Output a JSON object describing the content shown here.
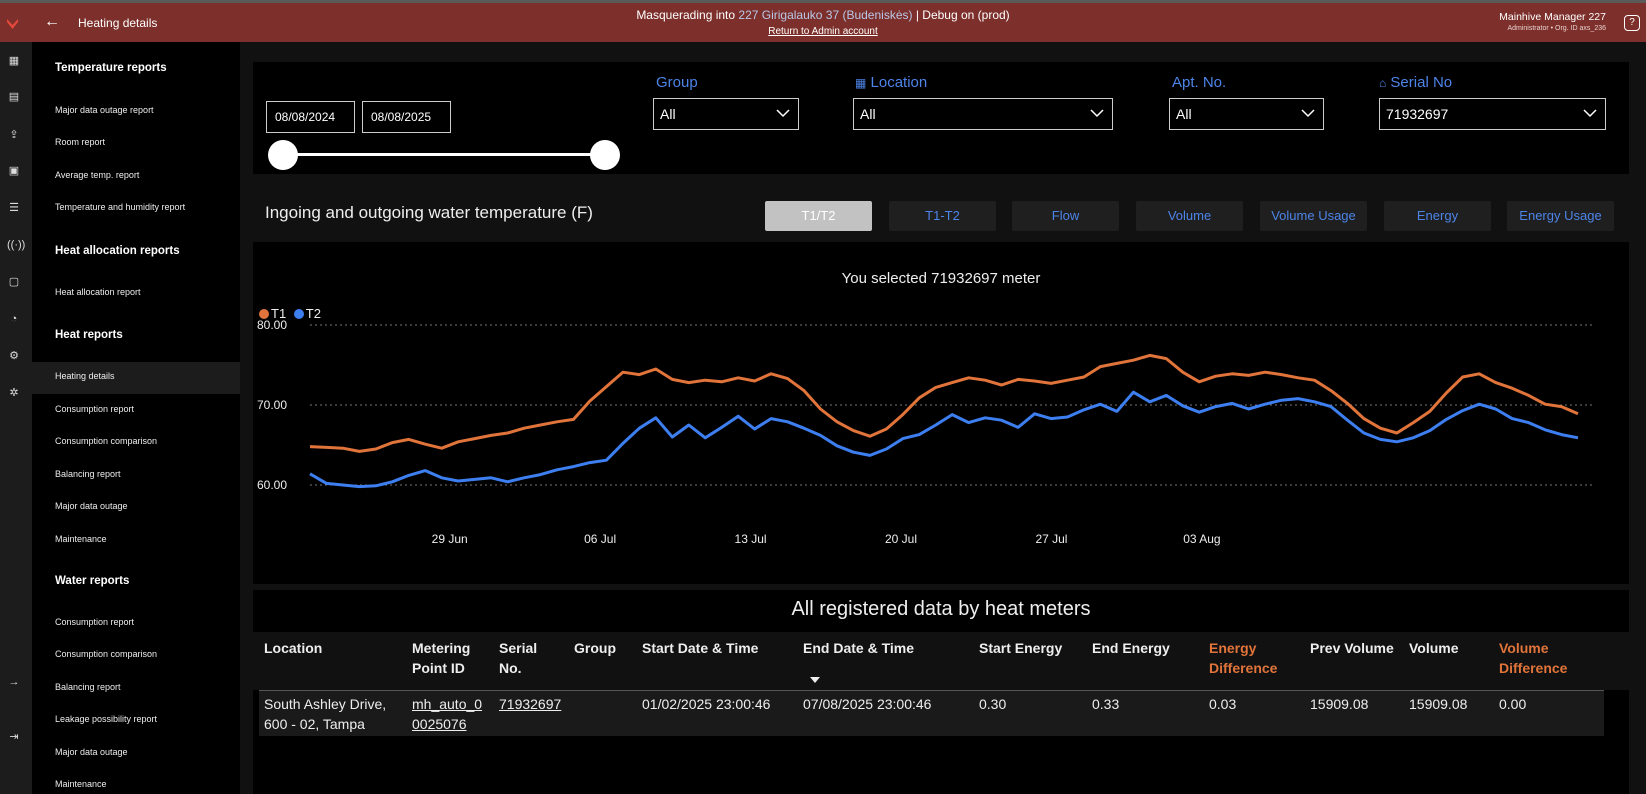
{
  "topbar": {
    "title": "Heating details",
    "masq_prefix": "Masquerading into ",
    "masq_target": "227 Girigalauko 37 (Budeniskės)",
    "masq_suffix": " | Debug on (prod)",
    "return_link": "Return to Admin account",
    "user_name": "Mainhive Manager 227",
    "user_sub": "Administrator • Org. ID axs_236"
  },
  "sidebar": {
    "sections": [
      {
        "title": "Temperature reports",
        "items": [
          "Major data outage report",
          "Room report",
          "Average temp. report",
          "Temperature and humidity report"
        ]
      },
      {
        "title": "Heat allocation reports",
        "items": [
          "Heat allocation report"
        ]
      },
      {
        "title": "Heat reports",
        "items": [
          "Heating details",
          "Consumption report",
          "Consumption comparison",
          "Balancing report",
          "Major data outage",
          "Maintenance"
        ]
      },
      {
        "title": "Water reports",
        "items": [
          "Consumption report",
          "Consumption comparison",
          "Balancing report",
          "Leakage possibility report",
          "Major data outage",
          "Maintenance"
        ]
      }
    ]
  },
  "filters": {
    "date_from": "08/08/2024",
    "date_to": "08/08/2025",
    "group_label": "Group",
    "group_value": "All",
    "location_label": "Location",
    "location_value": "All",
    "apt_label": "Apt. No.",
    "apt_value": "All",
    "serial_label": "Serial No",
    "serial_value": "71932697"
  },
  "chart_card": {
    "title": "Ingoing and outgoing water temperature (F)",
    "tabs": [
      "T1/T2",
      "T1-T2",
      "Flow",
      "Volume",
      "Volume Usage",
      "Energy",
      "Energy Usage"
    ],
    "active_tab": "T1/T2",
    "selected_msg": "You selected 71932697 meter"
  },
  "chart_data": {
    "type": "line",
    "title": "Ingoing and outgoing water temperature (F)",
    "xlabel": "",
    "ylabel": "",
    "ylim": [
      60,
      80
    ],
    "yticks": [
      "60.00",
      "70.00",
      "80.00"
    ],
    "x_ticks": [
      "29 Jun",
      "06 Jul",
      "13 Jul",
      "20 Jul",
      "27 Jul",
      "03 Aug"
    ],
    "x_range_days": [
      0,
      59
    ],
    "x_tick_days": [
      6.5,
      13.5,
      20.5,
      27.5,
      34.5,
      41.5
    ],
    "legend": "top-left",
    "grid": true,
    "series": [
      {
        "name": "T1",
        "color": "#e0743a",
        "values": [
          64.8,
          64.7,
          64.6,
          64.2,
          64.5,
          65.3,
          65.7,
          65.1,
          64.6,
          65.4,
          65.8,
          66.2,
          66.5,
          67.1,
          67.5,
          67.9,
          68.2,
          70.5,
          72.3,
          74.1,
          73.8,
          74.5,
          73.2,
          72.8,
          73.1,
          72.9,
          73.4,
          73.0,
          73.9,
          73.3,
          71.8,
          69.5,
          67.9,
          66.8,
          66.1,
          67.0,
          68.8,
          70.9,
          72.2,
          72.8,
          73.4,
          73.1,
          72.5,
          73.2,
          73.0,
          72.7,
          73.1,
          73.5,
          74.8,
          75.2,
          75.6,
          76.2,
          75.8,
          74.1,
          72.9,
          73.6,
          73.9,
          73.7,
          74.1,
          73.8,
          73.4,
          73.1,
          71.8,
          70.2,
          68.3,
          67.1,
          66.5,
          67.8,
          69.2,
          71.5,
          73.5,
          73.9,
          72.8,
          72.1,
          71.2,
          70.1,
          69.8,
          68.9
        ]
      },
      {
        "name": "T2",
        "color": "#3d7ff0",
        "values": [
          61.4,
          60.2,
          60.0,
          59.8,
          59.9,
          60.4,
          61.2,
          61.8,
          60.9,
          60.5,
          60.7,
          60.9,
          60.4,
          60.9,
          61.3,
          61.9,
          62.3,
          62.8,
          63.1,
          65.2,
          67.1,
          68.4,
          66.0,
          67.5,
          65.9,
          67.2,
          68.6,
          67.0,
          68.3,
          67.9,
          67.1,
          66.2,
          64.9,
          64.1,
          63.7,
          64.5,
          65.8,
          66.3,
          67.5,
          68.8,
          67.8,
          68.4,
          68.1,
          67.2,
          68.9,
          68.3,
          68.5,
          69.4,
          70.1,
          69.2,
          71.6,
          70.4,
          71.2,
          69.9,
          69.1,
          69.8,
          70.2,
          69.5,
          70.1,
          70.6,
          70.8,
          70.4,
          69.8,
          68.1,
          66.5,
          65.7,
          65.4,
          65.9,
          66.8,
          68.2,
          69.3,
          70.1,
          69.5,
          68.3,
          67.8,
          66.9,
          66.3,
          65.9
        ]
      }
    ]
  },
  "table": {
    "title": "All registered data by heat meters",
    "headers": [
      "Location",
      "Metering Point ID",
      "Serial No.",
      "Group",
      "Start Date & Time",
      "End Date & Time",
      "Start Energy",
      "End Energy",
      "Energy Difference",
      "Prev Volume",
      "Volume",
      "Volume Difference"
    ],
    "rows": [
      [
        "South Ashley Drive, 600 - 02, Tampa",
        "mh_auto_0 0025076",
        "71932697",
        "",
        "01/02/2025 23:00:46",
        "07/08/2025 23:00:46",
        "0.30",
        "0.33",
        "0.03",
        "15909.08",
        "15909.08",
        "0.00"
      ]
    ]
  },
  "colors": {
    "accent": "#4d84e8",
    "topbar": "#7d302b",
    "t1": "#e0743a",
    "t2": "#3d7ff0",
    "highlight_header": "#e0743a"
  }
}
